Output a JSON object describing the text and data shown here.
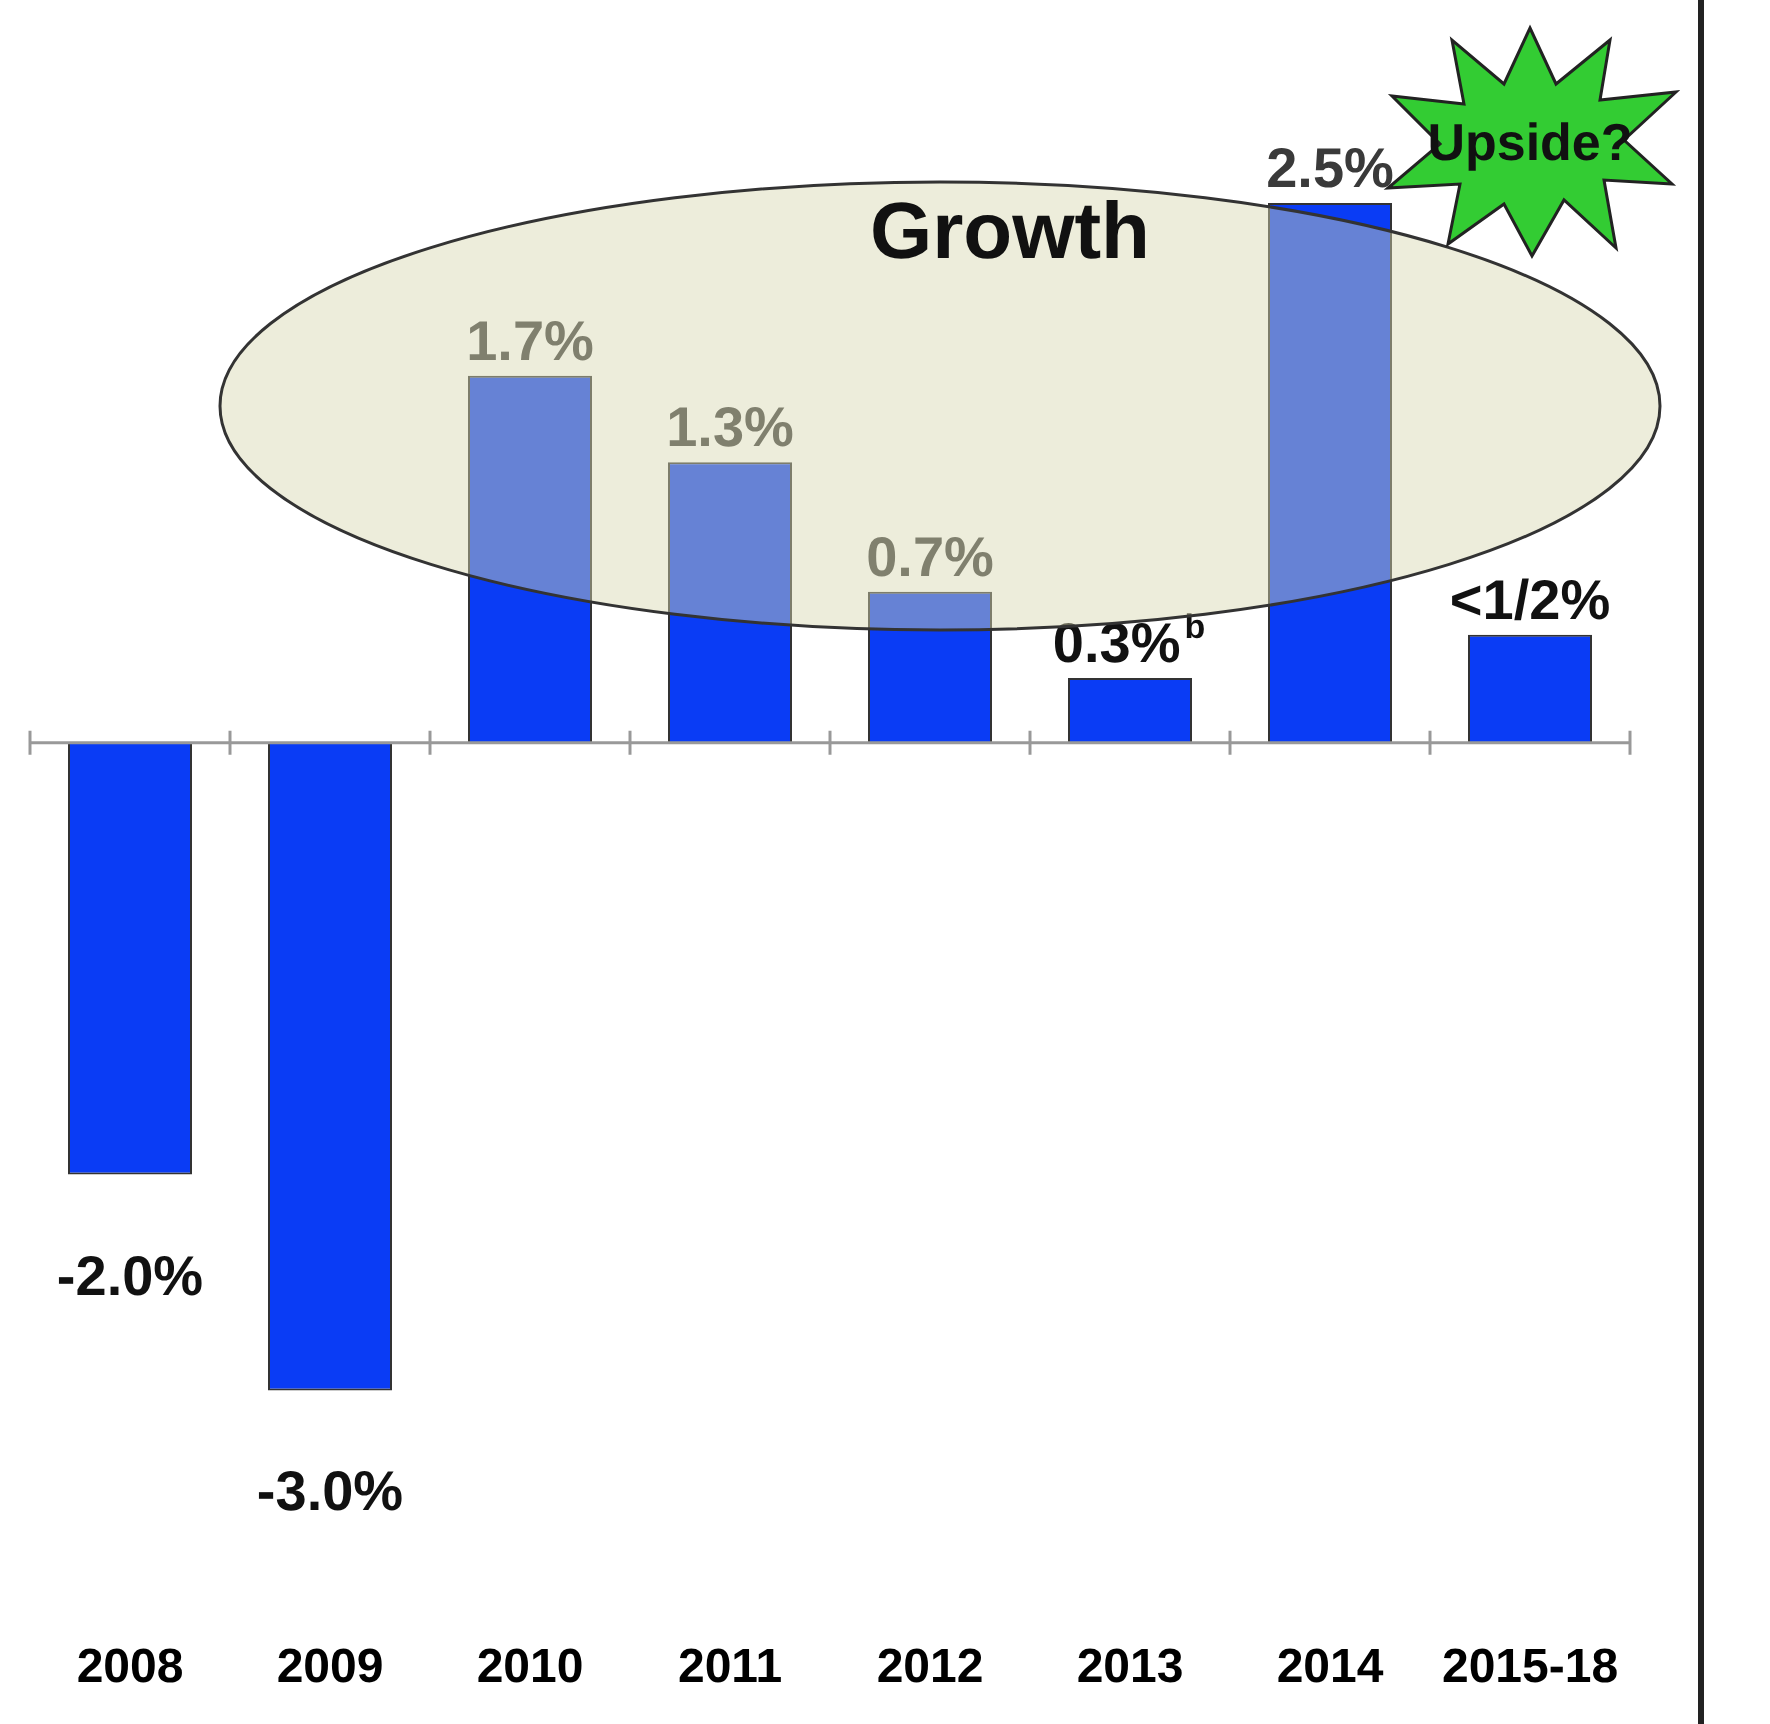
{
  "chart_data": {
    "type": "bar",
    "categories": [
      "2008",
      "2009",
      "2010",
      "2011",
      "2012",
      "2013",
      "2014",
      "2015-18"
    ],
    "values": [
      -2.0,
      -3.0,
      1.7,
      1.3,
      0.7,
      0.3,
      2.5,
      0.5
    ],
    "value_labels": [
      "-2.0%",
      "-3.0%",
      "1.7%",
      "1.3%",
      "0.7%",
      "0.3%$^{b}$",
      "2.5%",
      "<1/2%"
    ],
    "color": "#0a3cf5",
    "grid": false,
    "legend": false,
    "annotations": [
      "Growth",
      "Upside?"
    ]
  }
}
